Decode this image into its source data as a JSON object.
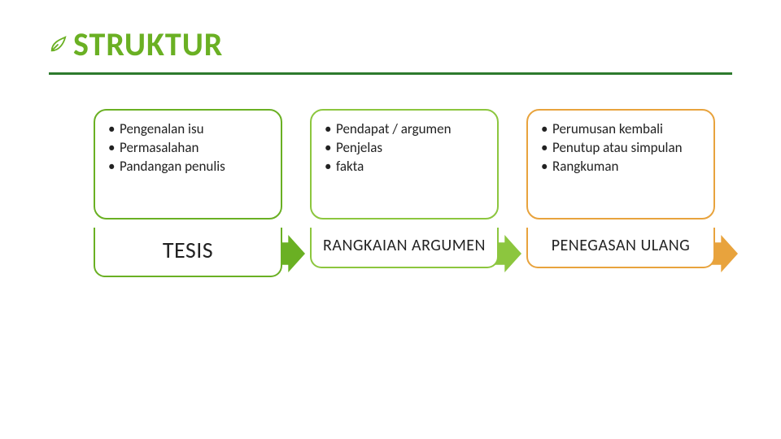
{
  "title": {
    "text": "STRUKTUR",
    "color": "#6ab023",
    "fontsize": 40,
    "underline_color": "#2d7a2d",
    "leaf_color": "#6ab023"
  },
  "layout": {
    "content_fontsize": 17,
    "heading_fontsize": 22,
    "box_border_radius": 16,
    "content_height": 136
  },
  "columns": [
    {
      "heading": "TESIS",
      "heading_fontsize": 28,
      "border_color": "#6ab023",
      "arrow_color": "#6ab023",
      "bullets": [
        "Pengenalan isu",
        "Permasalahan",
        "Pandangan penulis"
      ]
    },
    {
      "heading": "RANGKAIAN ARGUMEN",
      "heading_fontsize": 20,
      "border_color": "#8cc63e",
      "arrow_color": "#8cc63e",
      "bullets": [
        "Pendapat / argumen",
        "Penjelas",
        "fakta"
      ]
    },
    {
      "heading": "PENEGASAN ULANG",
      "heading_fontsize": 20,
      "border_color": "#e8a33d",
      "arrow_color": "#e8a33d",
      "bullets": [
        "Perumusan kembali",
        "Penutup atau simpulan",
        "Rangkuman"
      ]
    }
  ]
}
